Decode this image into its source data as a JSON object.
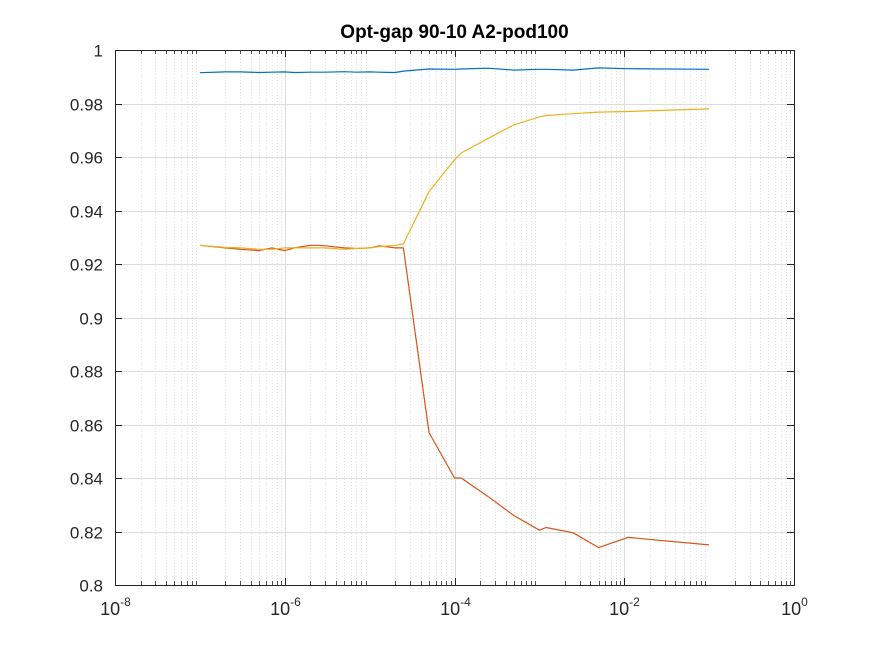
{
  "chart_data": {
    "type": "line",
    "title": "Opt-gap 90-10 A2-pod100",
    "xlabel": "",
    "ylabel": "",
    "xscale": "log",
    "xlim": [
      1e-08,
      1
    ],
    "ylim": [
      0.8,
      1
    ],
    "grid": true,
    "minor_grid": true,
    "yticks": [
      {
        "value": 0.8,
        "label": "0.8"
      },
      {
        "value": 0.82,
        "label": "0.82"
      },
      {
        "value": 0.84,
        "label": "0.84"
      },
      {
        "value": 0.86,
        "label": "0.86"
      },
      {
        "value": 0.88,
        "label": "0.88"
      },
      {
        "value": 0.9,
        "label": "0.9"
      },
      {
        "value": 0.92,
        "label": "0.92"
      },
      {
        "value": 0.94,
        "label": "0.94"
      },
      {
        "value": 0.96,
        "label": "0.96"
      },
      {
        "value": 0.98,
        "label": "0.98"
      },
      {
        "value": 1.0,
        "label": "1"
      }
    ],
    "xticks": [
      {
        "value": 1e-08,
        "base": "10",
        "exp": "-8"
      },
      {
        "value": 1e-06,
        "base": "10",
        "exp": "-6"
      },
      {
        "value": 0.0001,
        "base": "10",
        "exp": "-4"
      },
      {
        "value": 0.01,
        "base": "10",
        "exp": "-2"
      },
      {
        "value": 1,
        "base": "10",
        "exp": "0"
      }
    ],
    "x": [
      1e-07,
      2e-07,
      3e-07,
      5e-07,
      7e-07,
      1e-06,
      1.3e-06,
      2e-06,
      2.5e-06,
      3e-06,
      5e-06,
      7e-06,
      1e-05,
      1.3e-05,
      2e-05,
      2.5e-05,
      5e-05,
      0.0001,
      0.00012,
      0.00025,
      0.0005,
      0.001,
      0.0012,
      0.0025,
      0.005,
      0.011,
      0.1
    ],
    "series": [
      {
        "color": "#0072BD",
        "values": [
          0.9915,
          0.9918,
          0.9918,
          0.9916,
          0.9917,
          0.9918,
          0.9916,
          0.9917,
          0.9917,
          0.9917,
          0.9919,
          0.9917,
          0.9918,
          0.9917,
          0.9916,
          0.9921,
          0.9929,
          0.9928,
          0.9929,
          0.9932,
          0.9925,
          0.9928,
          0.9928,
          0.9925,
          0.9933,
          0.993,
          0.9928
        ]
      },
      {
        "color": "#D95319",
        "values": [
          0.927,
          0.926,
          0.9255,
          0.925,
          0.926,
          0.925,
          0.926,
          0.927,
          0.927,
          0.9268,
          0.926,
          0.9258,
          0.926,
          0.9268,
          0.926,
          0.926,
          0.857,
          0.84,
          0.84,
          0.833,
          0.826,
          0.8205,
          0.8215,
          0.8195,
          0.814,
          0.8178,
          0.815
        ]
      },
      {
        "color": "#EDB120",
        "values": [
          0.927,
          0.9262,
          0.926,
          0.9255,
          0.9255,
          0.926,
          0.926,
          0.926,
          0.926,
          0.926,
          0.9255,
          0.9258,
          0.926,
          0.9265,
          0.927,
          0.9275,
          0.947,
          0.959,
          0.9615,
          0.967,
          0.972,
          0.975,
          0.9755,
          0.9762,
          0.9768,
          0.977,
          0.978
        ]
      }
    ]
  }
}
